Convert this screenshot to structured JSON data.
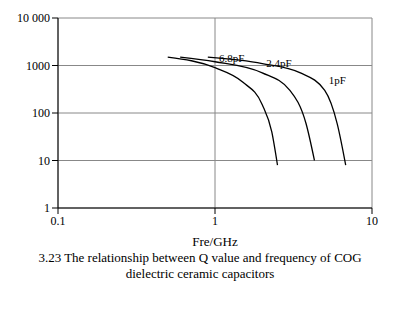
{
  "chart_data": {
    "type": "line",
    "title": "3.23 The relationship between Q value and frequency of COG dielectric ceramic capacitors",
    "x_label": "Fre/GHz",
    "log": true,
    "grid": true,
    "xlim": [
      0.1,
      10
    ],
    "xticks": [
      0.1,
      1,
      10
    ],
    "ylim": [
      1,
      10000
    ],
    "yticks": [
      1,
      10,
      100,
      1000,
      {
        "value": 10000,
        "label": "10 000"
      }
    ],
    "series": [
      {
        "name": "6.8pF",
        "color": "#000000",
        "x": [
          0.5,
          1,
          1.5,
          2,
          2.3,
          2.5
        ],
        "values": [
          1500,
          900,
          450,
          150,
          40,
          8
        ]
      },
      {
        "name": "2.4pF",
        "color": "#000000",
        "x": [
          0.6,
          1,
          2,
          3,
          3.8,
          4.3
        ],
        "values": [
          1500,
          1200,
          700,
          300,
          60,
          10
        ]
      },
      {
        "name": "1pF",
        "color": "#000000",
        "x": [
          0.9,
          2,
          3.5,
          5,
          6,
          6.8
        ],
        "values": [
          1500,
          1100,
          700,
          300,
          60,
          8
        ]
      }
    ]
  }
}
